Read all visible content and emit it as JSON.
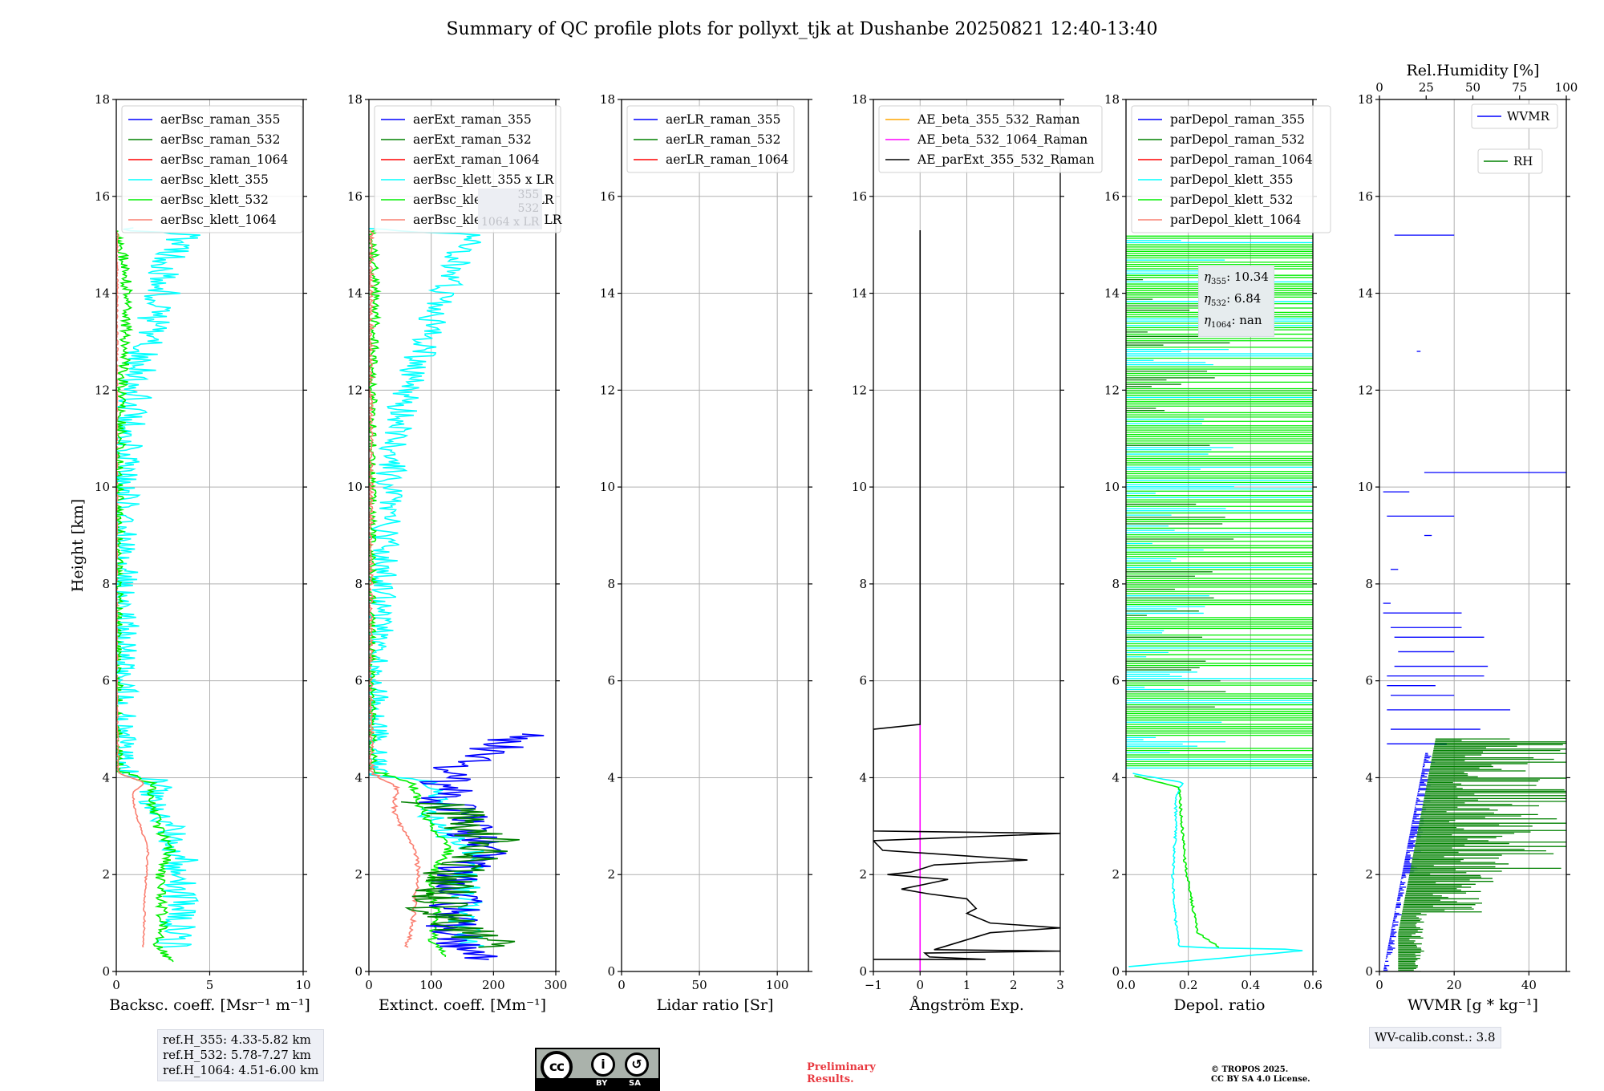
{
  "title": "Summary of QC profile plots for pollyxt_tjk at Dushanbe 20250821 12:40-13:40",
  "ylabel": "Height [km]",
  "ref_heights": [
    "ref.H_355: 4.33-5.82 km",
    "ref.H_532: 5.78-7.27 km",
    "ref.H_1064: 4.51-6.00 km"
  ],
  "eta_box": {
    "lines": [
      {
        "sym": "η",
        "sub": "355",
        "val": ": 10.34"
      },
      {
        "sym": "η",
        "sub": "532",
        "val": ": 6.84"
      },
      {
        "sym": "η",
        "sub": "1064",
        "val": ": nan"
      }
    ]
  },
  "hidden_legend_fragments": [
    "355",
    "532",
    "1064 x LR"
  ],
  "wv_calib": "WV-calib.const.: 3.8",
  "cc_license": {
    "cc": "cc",
    "by": "BY",
    "sa": "SA"
  },
  "preliminary": [
    "Preliminary",
    "Results."
  ],
  "copyright": [
    "© TROPOS 2025.",
    "CC BY SA 4.0 License."
  ],
  "colors": {
    "blue": "#0000ff",
    "green": "#008000",
    "red": "#ff0000",
    "cyan": "#00ffff",
    "lime": "#00ee00",
    "salmon": "#fa8072",
    "orange": "#ffa500",
    "magenta": "#ff00ff",
    "black": "#000000",
    "grid": "#b0b0b0"
  },
  "chart_data": [
    {
      "type": "line",
      "xlabel": "Backsc. coeff. [Msr⁻¹ m⁻¹]",
      "xlim": [
        0,
        10
      ],
      "ylim": [
        0,
        18
      ],
      "xticks": [
        0,
        5,
        10
      ],
      "yticks": [
        0,
        2,
        4,
        6,
        8,
        10,
        12,
        14,
        16,
        18
      ],
      "legend": [
        "aerBsc_raman_355",
        "aerBsc_raman_532",
        "aerBsc_raman_1064",
        "aerBsc_klett_355",
        "aerBsc_klett_532",
        "aerBsc_klett_1064"
      ],
      "legend_colors": [
        "blue",
        "green",
        "red",
        "cyan",
        "lime",
        "salmon"
      ],
      "series": [
        {
          "name": "aerBsc_klett_355",
          "color": "cyan",
          "profile": [
            [
              3.1,
              0.5
            ],
            [
              3.3,
              1
            ],
            [
              3.4,
              1.5
            ],
            [
              3.2,
              2
            ],
            [
              3.5,
              2.3
            ],
            [
              3,
              2.8
            ],
            [
              2.3,
              3.2
            ],
            [
              2.2,
              3.5
            ],
            [
              2.1,
              3.9
            ],
            [
              1.2,
              4.05
            ],
            [
              0.1,
              4.2
            ],
            [
              0.2,
              5
            ],
            [
              0.15,
              6
            ],
            [
              0.3,
              7
            ],
            [
              0.2,
              8
            ],
            [
              0.4,
              9
            ],
            [
              0.2,
              10
            ],
            [
              0.5,
              11
            ],
            [
              1,
              12
            ],
            [
              1.5,
              13
            ],
            [
              2.5,
              14
            ],
            [
              3,
              15
            ],
            [
              3.6,
              15.2
            ],
            [
              0,
              15.35
            ]
          ],
          "noise": 1.0
        },
        {
          "name": "aerBsc_klett_532",
          "color": "lime",
          "profile": [
            [
              3.1,
              0.2
            ],
            [
              2.2,
              0.5
            ],
            [
              2.5,
              1
            ],
            [
              2.4,
              1.5
            ],
            [
              2.3,
              2
            ],
            [
              2.9,
              2.5
            ],
            [
              2.5,
              2.8
            ],
            [
              2.2,
              3
            ],
            [
              1.9,
              3.5
            ],
            [
              1.8,
              3.9
            ],
            [
              0.1,
              4.15
            ],
            [
              0.05,
              6
            ],
            [
              0.1,
              10
            ],
            [
              0.3,
              12
            ],
            [
              0.5,
              13
            ],
            [
              0.6,
              14
            ],
            [
              0.3,
              15
            ],
            [
              0,
              15.3
            ]
          ],
          "noise": 0.3
        },
        {
          "name": "aerBsc_klett_1064",
          "color": "salmon",
          "profile": [
            [
              1.4,
              0.5
            ],
            [
              1.5,
              1
            ],
            [
              1.5,
              1.5
            ],
            [
              1.6,
              2
            ],
            [
              1.7,
              2.5
            ],
            [
              1.3,
              3
            ],
            [
              1.0,
              3.3
            ],
            [
              0.9,
              3.7
            ],
            [
              1.5,
              3.9
            ],
            [
              0.1,
              4.1
            ],
            [
              0.02,
              6
            ],
            [
              0.05,
              15.3
            ]
          ],
          "noise": 0.05
        }
      ]
    },
    {
      "type": "line",
      "xlabel": "Extinct. coeff. [Mm⁻¹]",
      "xlim": [
        0,
        300
      ],
      "ylim": [
        0,
        18
      ],
      "xticks": [
        0,
        100,
        200,
        300
      ],
      "yticks": [
        0,
        2,
        4,
        6,
        8,
        10,
        12,
        14,
        16,
        18
      ],
      "legend": [
        "aerExt_raman_355",
        "aerExt_raman_532",
        "aerExt_raman_1064",
        "aerBsc_klett_355 x LR",
        "aerBsc_klett_532 x LR",
        "aerBsc_klett_1064 x LR"
      ],
      "legend_colors": [
        "blue",
        "green",
        "red",
        "cyan",
        "lime",
        "salmon"
      ],
      "series": [
        {
          "name": "aerBsc_klett_355 x LR",
          "color": "cyan",
          "profile": [
            [
              170,
              0.5
            ],
            [
              150,
              1
            ],
            [
              160,
              1.5
            ],
            [
              150,
              2
            ],
            [
              180,
              2.3
            ],
            [
              130,
              2.8
            ],
            [
              100,
              3.2
            ],
            [
              110,
              3.5
            ],
            [
              100,
              3.9
            ],
            [
              20,
              4.05
            ],
            [
              5,
              4.2
            ],
            [
              10,
              6
            ],
            [
              20,
              8
            ],
            [
              30,
              10
            ],
            [
              60,
              12
            ],
            [
              90,
              13
            ],
            [
              120,
              14
            ],
            [
              150,
              15
            ],
            [
              170,
              15.2
            ],
            [
              0,
              15.35
            ]
          ],
          "noise": 25
        },
        {
          "name": "aerBsc_klett_532 x LR",
          "color": "lime",
          "profile": [
            [
              130,
              0.3
            ],
            [
              100,
              0.6
            ],
            [
              110,
              1.2
            ],
            [
              100,
              1.6
            ],
            [
              100,
              2
            ],
            [
              130,
              2.5
            ],
            [
              100,
              3
            ],
            [
              80,
              3.5
            ],
            [
              70,
              3.9
            ],
            [
              5,
              4.15
            ],
            [
              3,
              6
            ],
            [
              5,
              12
            ],
            [
              10,
              14
            ],
            [
              5,
              15.3
            ]
          ],
          "noise": 8
        },
        {
          "name": "aerBsc_klett_1064 x LR",
          "color": "salmon",
          "profile": [
            [
              60,
              0.5
            ],
            [
              70,
              1
            ],
            [
              75,
              1.5
            ],
            [
              80,
              2
            ],
            [
              75,
              2.5
            ],
            [
              50,
              3
            ],
            [
              40,
              3.3
            ],
            [
              45,
              3.8
            ],
            [
              5,
              4.1
            ],
            [
              2,
              6
            ],
            [
              3,
              15.3
            ]
          ],
          "noise": 4
        },
        {
          "name": "aerExt_raman_355",
          "color": "blue",
          "profile": [
            [
              200,
              0.25
            ],
            [
              150,
              0.5
            ],
            [
              130,
              1
            ],
            [
              140,
              1.5
            ],
            [
              130,
              2
            ],
            [
              200,
              2.4
            ],
            [
              160,
              2.8
            ],
            [
              150,
              3.2
            ],
            [
              120,
              3.5
            ],
            [
              130,
              3.8
            ],
            [
              120,
              4.2
            ],
            [
              200,
              4.6
            ],
            [
              250,
              4.9
            ]
          ],
          "noise": 45
        },
        {
          "name": "aerExt_raman_532",
          "color": "green",
          "profile": [
            [
              200,
              0.5
            ],
            [
              160,
              0.8
            ],
            [
              110,
              1.3
            ],
            [
              130,
              1.8
            ],
            [
              150,
              2.3
            ],
            [
              200,
              2.6
            ],
            [
              170,
              3
            ],
            [
              100,
              3.5
            ]
          ],
          "noise": 55
        }
      ]
    },
    {
      "type": "line",
      "xlabel": "Lidar ratio [Sr]",
      "xlim": [
        0,
        120
      ],
      "ylim": [
        0,
        18
      ],
      "xticks": [
        0,
        50,
        100
      ],
      "yticks": [
        0,
        2,
        4,
        6,
        8,
        10,
        12,
        14,
        16,
        18
      ],
      "legend": [
        "aerLR_raman_355",
        "aerLR_raman_532",
        "aerLR_raman_1064"
      ],
      "legend_colors": [
        "blue",
        "green",
        "red"
      ],
      "series": []
    },
    {
      "type": "line",
      "xlabel": "Ångström Exp.",
      "xlim": [
        -1,
        3
      ],
      "ylim": [
        0,
        18
      ],
      "xticks": [
        -1,
        0,
        1,
        2,
        3
      ],
      "yticks": [
        0,
        2,
        4,
        6,
        8,
        10,
        12,
        14,
        16,
        18
      ],
      "legend": [
        "AE_beta_355_532_Raman",
        "AE_beta_532_1064_Raman",
        "AE_parExt_355_532_Raman"
      ],
      "legend_colors": [
        "orange",
        "magenta",
        "black"
      ],
      "series": [
        {
          "name": "AE_beta_532_1064_Raman",
          "color": "magenta",
          "profile": [
            [
              0,
              0
            ],
            [
              0,
              5.1
            ]
          ],
          "noise": 0
        },
        {
          "name": "AE_parExt_355_532_Raman",
          "color": "black",
          "profile": [
            [
              0,
              15.3
            ],
            [
              0,
              5.1
            ],
            [
              -1,
              5
            ],
            [
              -1,
              2.9
            ],
            [
              3,
              2.85
            ],
            [
              -1,
              2.7
            ],
            [
              -0.8,
              2.5
            ],
            [
              2.3,
              2.3
            ],
            [
              0.3,
              2.2
            ],
            [
              -0.2,
              2.05
            ],
            [
              -0.7,
              2.0
            ],
            [
              0.6,
              1.9
            ],
            [
              -0.4,
              1.7
            ],
            [
              0.2,
              1.6
            ],
            [
              1.0,
              1.5
            ],
            [
              1.2,
              1.3
            ],
            [
              1,
              1.2
            ],
            [
              1.5,
              1.0
            ],
            [
              3,
              0.9
            ],
            [
              1.5,
              0.8
            ],
            [
              0.3,
              0.45
            ],
            [
              3,
              0.42
            ],
            [
              0.1,
              0.38
            ],
            [
              0.2,
              0.3
            ],
            [
              1.4,
              0.25
            ],
            [
              -1,
              0.25
            ]
          ],
          "noise": 0
        }
      ]
    },
    {
      "type": "line",
      "xlabel": "Depol. ratio",
      "xlim": [
        0,
        0.6
      ],
      "ylim": [
        0,
        18
      ],
      "xticks": [
        0.0,
        0.2,
        0.4,
        0.6
      ],
      "yticks": [
        0,
        2,
        4,
        6,
        8,
        10,
        12,
        14,
        16,
        18
      ],
      "legend": [
        "parDepol_raman_355",
        "parDepol_raman_532",
        "parDepol_raman_1064",
        "parDepol_klett_355",
        "parDepol_klett_532",
        "parDepol_klett_1064"
      ],
      "legend_colors": [
        "blue",
        "green",
        "red",
        "cyan",
        "lime",
        "salmon"
      ],
      "series": [
        {
          "name": "parDepol_klett_355",
          "color": "cyan",
          "profile": [
            [
              0.01,
              0.1
            ],
            [
              0.6,
              0.45
            ],
            [
              0.17,
              0.5
            ],
            [
              0.16,
              1
            ],
            [
              0.15,
              2
            ],
            [
              0.16,
              3
            ],
            [
              0.16,
              3.6
            ],
            [
              0.18,
              3.9
            ],
            [
              0.01,
              4.1
            ]
          ],
          "noise": 0.004
        },
        {
          "name": "parDepol_klett_532",
          "color": "lime",
          "profile": [
            [
              0.3,
              0.5
            ],
            [
              0.23,
              0.8
            ],
            [
              0.21,
              1.5
            ],
            [
              0.19,
              2.2
            ],
            [
              0.18,
              3
            ],
            [
              0.17,
              3.8
            ],
            [
              0.02,
              4.05
            ]
          ],
          "noise": 0.004
        }
      ]
    },
    {
      "type": "line",
      "xlabel": "WVMR [g * kg⁻¹]",
      "xlabel2": "Rel.Humidity [%]",
      "xlim": [
        0,
        50
      ],
      "xlim2": [
        0,
        100
      ],
      "ylim": [
        0,
        18
      ],
      "xticks": [
        0,
        20,
        40
      ],
      "xticks2": [
        0,
        25,
        50,
        75,
        100
      ],
      "yticks": [
        0,
        2,
        4,
        6,
        8,
        10,
        12,
        14,
        16,
        18
      ],
      "legend": [
        "WVMR",
        "RH"
      ],
      "legend_colors": [
        "blue",
        "green"
      ],
      "series": [
        {
          "name": "WVMR",
          "color": "blue"
        },
        {
          "name": "RH",
          "color": "green"
        }
      ]
    }
  ]
}
